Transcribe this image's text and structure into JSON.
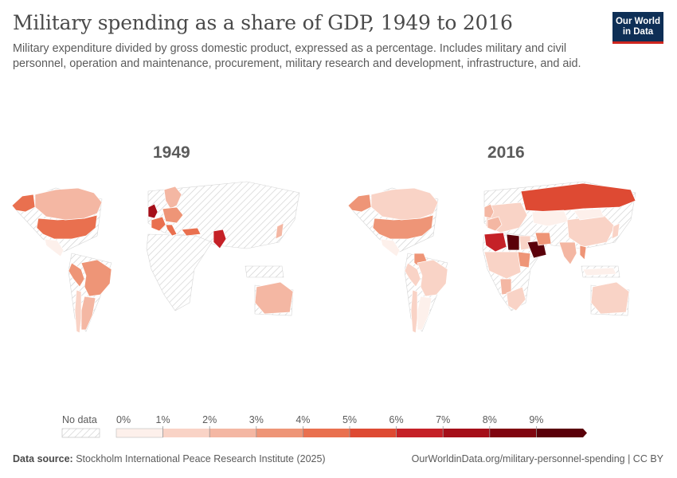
{
  "header": {
    "title": "Military spending as a share of GDP, 1949 to 2016",
    "subtitle": "Military expenditure divided by gross domestic product, expressed as a percentage. Includes military and civil personnel, operation and maintenance, procurement, military research and development, infrastructure, and aid.",
    "logo_line1": "Our World",
    "logo_line2": "in Data"
  },
  "maps": [
    {
      "year": "1949",
      "regions": [
        {
          "name": "USA",
          "pct": 4.6
        },
        {
          "name": "Canada",
          "pct": 2.2
        },
        {
          "name": "Alaska",
          "pct": 4.6
        },
        {
          "name": "Mexico",
          "pct": 0.4
        },
        {
          "name": "Brazil",
          "pct": 3.2
        },
        {
          "name": "Peru",
          "pct": 3.0
        },
        {
          "name": "Argentina",
          "pct": 2.2
        },
        {
          "name": "Chile",
          "pct": 1.2
        },
        {
          "name": "UK",
          "pct": 7.0
        },
        {
          "name": "France",
          "pct": 4.5
        },
        {
          "name": "Italy",
          "pct": 4.0
        },
        {
          "name": "Scandinavia",
          "pct": 2.4
        },
        {
          "name": "Central Europe",
          "pct": 3.0
        },
        {
          "name": "Pakistan",
          "pct": 6.0
        },
        {
          "name": "Japan",
          "pct": 2.5
        },
        {
          "name": "Australia",
          "pct": 2.4
        },
        {
          "name": "Turkey",
          "pct": 4.0
        }
      ]
    },
    {
      "year": "2016",
      "regions": [
        {
          "name": "USA",
          "pct": 3.3
        },
        {
          "name": "Canada",
          "pct": 1.0
        },
        {
          "name": "Alaska",
          "pct": 3.3
        },
        {
          "name": "Mexico",
          "pct": 0.5
        },
        {
          "name": "Colombia",
          "pct": 3.3
        },
        {
          "name": "Brazil",
          "pct": 1.4
        },
        {
          "name": "Peru",
          "pct": 1.3
        },
        {
          "name": "Argentina",
          "pct": 0.9
        },
        {
          "name": "Chile",
          "pct": 1.9
        },
        {
          "name": "Europe",
          "pct": 1.5
        },
        {
          "name": "UK",
          "pct": 2.0
        },
        {
          "name": "France",
          "pct": 2.3
        },
        {
          "name": "Russia",
          "pct": 5.4
        },
        {
          "name": "Kazakhstan",
          "pct": 0.9
        },
        {
          "name": "China",
          "pct": 1.9
        },
        {
          "name": "Mongolia",
          "pct": 0.7
        },
        {
          "name": "India",
          "pct": 2.5
        },
        {
          "name": "Algeria",
          "pct": 6.4
        },
        {
          "name": "Libya",
          "pct": 15.0
        },
        {
          "name": "Egypt",
          "pct": 1.7
        },
        {
          "name": "Saudi Arabia",
          "pct": 10.0
        },
        {
          "name": "Iran",
          "pct": 3.0
        },
        {
          "name": "Sudan",
          "pct": 3.0
        },
        {
          "name": "Central Africa",
          "pct": 1.2
        },
        {
          "name": "Angola",
          "pct": 2.9
        },
        {
          "name": "Southern Africa",
          "pct": 1.1
        },
        {
          "name": "Japan",
          "pct": 1.0
        },
        {
          "name": "Indonesia",
          "pct": 0.8
        },
        {
          "name": "Australia",
          "pct": 1.9
        },
        {
          "name": "Myanmar",
          "pct": 3.6
        }
      ]
    }
  ],
  "legend": {
    "no_data_label": "No data",
    "ticks": [
      "0%",
      "1%",
      "2%",
      "3%",
      "4%",
      "5%",
      "6%",
      "7%",
      "8%",
      "9%"
    ],
    "colors": [
      "#fdf0eb",
      "#f9d3c6",
      "#f4b7a3",
      "#ee9577",
      "#e9704f",
      "#de4a33",
      "#c52127",
      "#a50f19",
      "#800510",
      "#5a000a"
    ]
  },
  "footer": {
    "source_label": "Data source:",
    "source_text": "Stockholm International Peace Research Institute (2025)",
    "url_text": "OurWorldinData.org/military-personnel-spending | CC BY"
  }
}
